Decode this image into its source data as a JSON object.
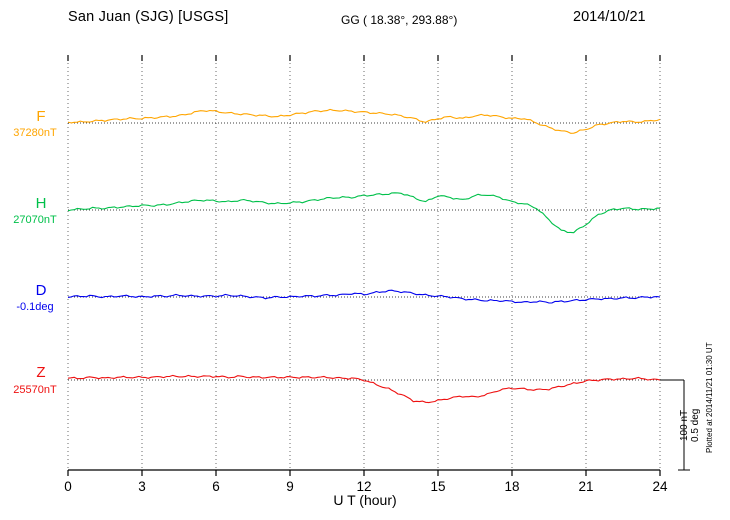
{
  "chart_data": {
    "type": "line",
    "title": "San Juan (SJG)  [USGS]",
    "coords_label": "GG ( 18.38°, 293.88°)",
    "date": "2014/10/21",
    "xlabel": "U T (hour)",
    "x_ticks": [
      0,
      3,
      6,
      9,
      12,
      15,
      18,
      21,
      24
    ],
    "xlim": [
      0,
      24
    ],
    "grid": "dotted",
    "legend_position": "left",
    "sample_hours_step": 0.5,
    "scale_bar": {
      "nt_label": "100 nT",
      "deg_label": "0.5 deg",
      "nt_value": 100,
      "deg_value": 0.5
    },
    "plotted_at": "Plotted at 2014/11/21 01:30 UT",
    "series": [
      {
        "name": "F",
        "label": "F",
        "baseline_label": "37280nT",
        "baseline_value": 37280,
        "units": "nT",
        "color": "#FFA500",
        "offsets_from_baseline": [
          1,
          1,
          2,
          3,
          4,
          5,
          5,
          6,
          7,
          8,
          11,
          14,
          13,
          11,
          10,
          9,
          8,
          7,
          9,
          11,
          13,
          14,
          14,
          13,
          12,
          11,
          10,
          8,
          5,
          1,
          5,
          7,
          5,
          8,
          9,
          7,
          5,
          5,
          0,
          -5,
          -9,
          -11,
          -7,
          -2,
          0,
          2,
          1,
          2,
          4
        ]
      },
      {
        "name": "H",
        "label": "H",
        "baseline_label": "27070nT",
        "baseline_value": 27070,
        "units": "nT",
        "color": "#00C04A",
        "offsets_from_baseline": [
          0,
          1,
          2,
          2,
          3,
          4,
          5,
          5,
          6,
          8,
          10,
          11,
          10,
          9,
          11,
          10,
          8,
          7,
          8,
          9,
          11,
          13,
          14,
          14,
          16,
          17,
          18,
          19,
          14,
          9,
          16,
          14,
          11,
          16,
          17,
          14,
          9,
          7,
          2,
          -11,
          -23,
          -25,
          -16,
          -5,
          0,
          2,
          1,
          1,
          2
        ]
      },
      {
        "name": "D",
        "label": "D",
        "baseline_label": "-0.1deg",
        "baseline_value": -0.1,
        "units": "deg",
        "color": "#0000EE",
        "offsets_from_baseline": [
          0,
          0.005,
          0.005,
          0,
          0.005,
          0.005,
          0,
          0.005,
          0.005,
          0.01,
          0.005,
          0.005,
          0.005,
          0.01,
          0.005,
          0,
          -0.005,
          0,
          0,
          0.005,
          0.005,
          0.01,
          0.01,
          0.02,
          0.015,
          0.025,
          0.035,
          0.03,
          0.02,
          0.01,
          0.005,
          0,
          -0.01,
          -0.015,
          -0.02,
          -0.02,
          -0.025,
          -0.03,
          -0.025,
          -0.03,
          -0.025,
          -0.02,
          -0.015,
          -0.01,
          -0.01,
          -0.005,
          -0.005,
          0,
          0
        ]
      },
      {
        "name": "Z",
        "label": "Z",
        "baseline_label": "25570nT",
        "baseline_value": 25570,
        "units": "nT",
        "color": "#EE1111",
        "offsets_from_baseline": [
          2,
          2,
          3,
          2,
          3,
          3,
          3,
          3,
          4,
          4,
          4,
          4,
          4,
          3,
          4,
          3,
          3,
          3,
          3,
          3,
          3,
          3,
          2,
          2,
          0,
          -5,
          -10,
          -16,
          -23,
          -25,
          -23,
          -20,
          -18,
          -19,
          -16,
          -11,
          -9,
          -10,
          -11,
          -10,
          -7,
          -4,
          -1,
          0,
          1,
          1,
          2,
          1,
          0
        ]
      }
    ]
  }
}
